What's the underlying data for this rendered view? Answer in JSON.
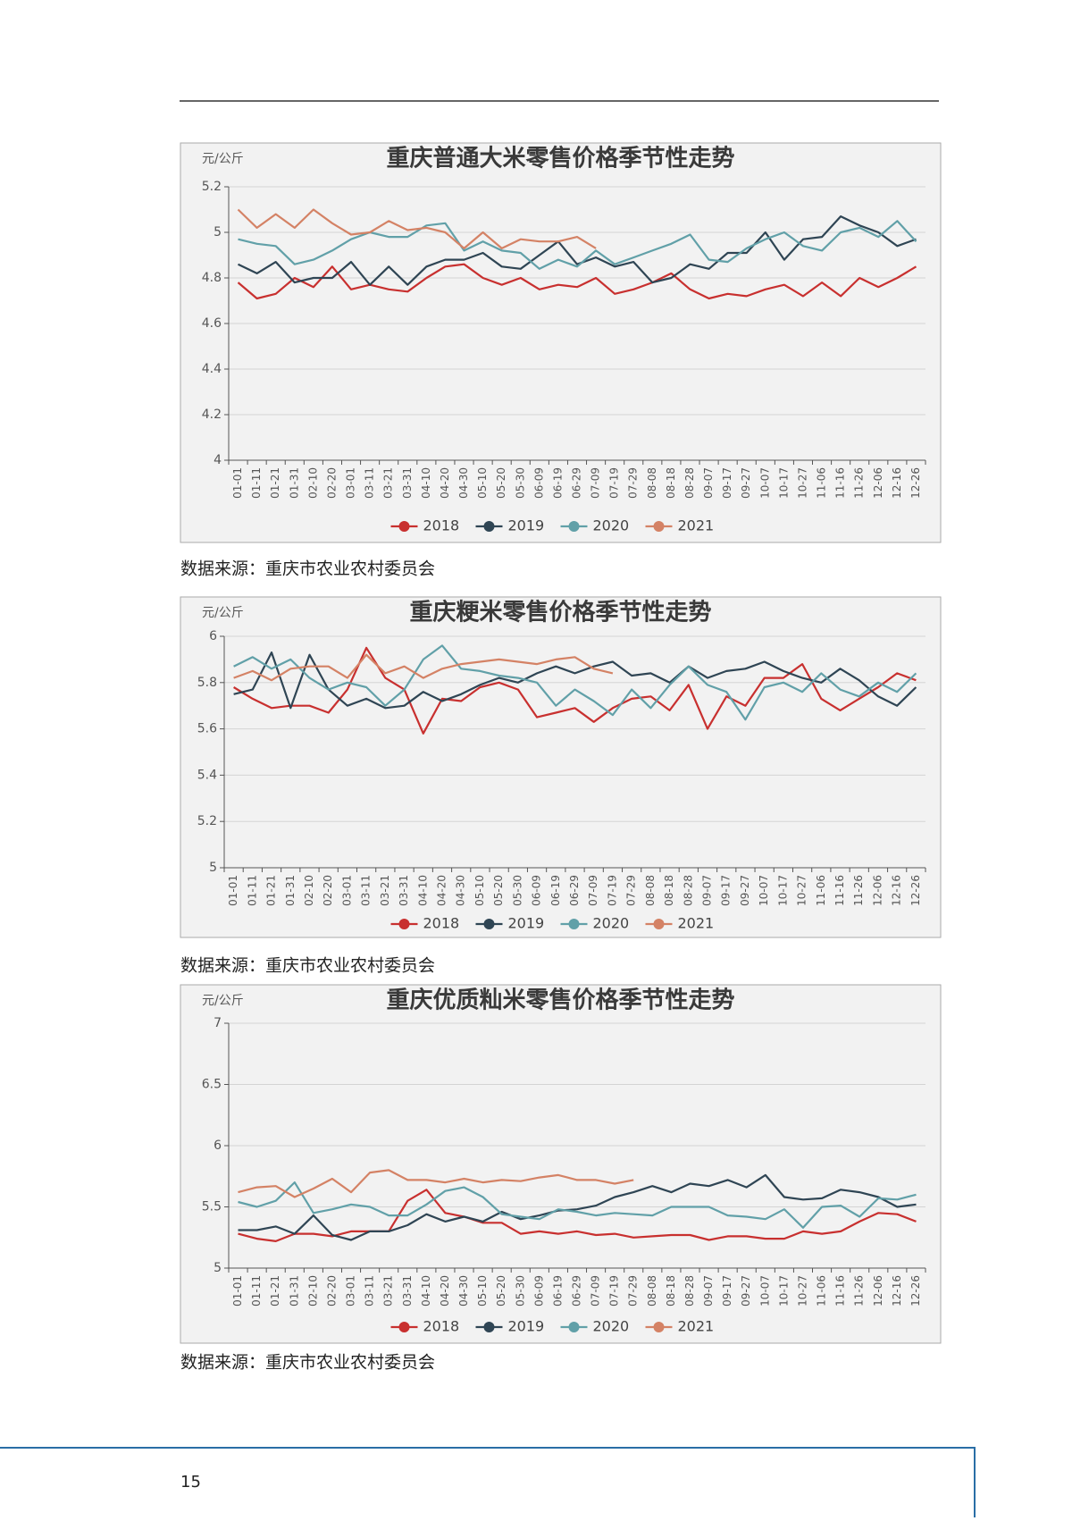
{
  "chart_data": [
    {
      "type": "line",
      "title": "重庆普通大米零售价格季节性走势",
      "y_label": "元/公斤",
      "categories": [
        "01-01",
        "01-11",
        "01-21",
        "01-31",
        "02-10",
        "02-20",
        "03-01",
        "03-11",
        "03-21",
        "03-31",
        "04-10",
        "04-20",
        "04-30",
        "05-10",
        "05-20",
        "05-30",
        "06-09",
        "06-19",
        "06-29",
        "07-09",
        "07-19",
        "07-29",
        "08-08",
        "08-18",
        "08-28",
        "09-07",
        "09-17",
        "09-27",
        "10-07",
        "10-17",
        "10-27",
        "11-06",
        "11-16",
        "11-26",
        "12-06",
        "12-16",
        "12-26"
      ],
      "ylim": [
        4,
        5.2
      ],
      "yticks": [
        4,
        4.2,
        4.4,
        4.6,
        4.8,
        5,
        5.2
      ],
      "grid": true,
      "series": [
        {
          "name": "2018",
          "color": "#c8302f",
          "values": [
            4.78,
            4.71,
            4.73,
            4.8,
            4.76,
            4.85,
            4.75,
            4.77,
            4.75,
            4.74,
            4.8,
            4.85,
            4.86,
            4.8,
            4.77,
            4.8,
            4.75,
            4.77,
            4.76,
            4.8,
            4.73,
            4.75,
            4.78,
            4.82,
            4.75,
            4.71,
            4.73,
            4.72,
            4.75,
            4.77,
            4.72,
            4.78,
            4.72,
            4.8,
            4.76,
            4.8,
            4.85
          ]
        },
        {
          "name": "2019",
          "color": "#2f4554",
          "values": [
            4.86,
            4.82,
            4.87,
            4.78,
            4.8,
            4.8,
            4.87,
            4.77,
            4.85,
            4.77,
            4.85,
            4.88,
            4.88,
            4.91,
            4.85,
            4.84,
            4.9,
            4.96,
            4.86,
            4.89,
            4.85,
            4.87,
            4.78,
            4.8,
            4.86,
            4.84,
            4.91,
            4.91,
            5.0,
            4.88,
            4.97,
            4.98,
            5.07,
            5.03,
            5.0,
            4.94,
            4.97
          ]
        },
        {
          "name": "2020",
          "color": "#61a0a8",
          "values": [
            4.97,
            4.95,
            4.94,
            4.86,
            4.88,
            4.92,
            4.97,
            5.0,
            4.98,
            4.98,
            5.03,
            5.04,
            4.92,
            4.96,
            4.92,
            4.91,
            4.84,
            4.88,
            4.85,
            4.92,
            4.86,
            4.89,
            4.92,
            4.95,
            4.99,
            4.88,
            4.87,
            4.93,
            4.97,
            5.0,
            4.94,
            4.92,
            5.0,
            5.02,
            4.98,
            5.05,
            4.96
          ]
        },
        {
          "name": "2021",
          "color": "#d48265",
          "values": [
            5.1,
            5.02,
            5.08,
            5.02,
            5.1,
            5.04,
            4.99,
            5.0,
            5.05,
            5.01,
            5.02,
            5.0,
            4.93,
            5.0,
            4.93,
            4.97,
            4.96,
            4.96,
            4.98,
            4.93,
            null,
            null,
            null,
            null,
            null,
            null,
            null,
            null,
            null,
            null,
            null,
            null,
            null,
            null,
            null,
            null,
            null
          ]
        }
      ]
    },
    {
      "type": "line",
      "title": "重庆粳米零售价格季节性走势",
      "y_label": "元/公斤",
      "categories": [
        "01-01",
        "01-11",
        "01-21",
        "01-31",
        "02-10",
        "02-20",
        "03-01",
        "03-11",
        "03-21",
        "03-31",
        "04-10",
        "04-20",
        "04-30",
        "05-10",
        "05-20",
        "05-30",
        "06-09",
        "06-19",
        "06-29",
        "07-09",
        "07-19",
        "07-29",
        "08-08",
        "08-18",
        "08-28",
        "09-07",
        "09-17",
        "09-27",
        "10-07",
        "10-17",
        "10-27",
        "11-06",
        "11-16",
        "11-26",
        "12-06",
        "12-16",
        "12-26"
      ],
      "ylim": [
        5,
        6
      ],
      "yticks": [
        5,
        5.2,
        5.4,
        5.6,
        5.8,
        6
      ],
      "grid": true,
      "series": [
        {
          "name": "2018",
          "color": "#c8302f",
          "values": [
            5.78,
            5.73,
            5.69,
            5.7,
            5.7,
            5.67,
            5.77,
            5.95,
            5.82,
            5.77,
            5.58,
            5.73,
            5.72,
            5.78,
            5.8,
            5.77,
            5.65,
            5.67,
            5.69,
            5.63,
            5.69,
            5.73,
            5.74,
            5.68,
            5.79,
            5.6,
            5.74,
            5.7,
            5.82,
            5.82,
            5.88,
            5.73,
            5.68,
            5.73,
            5.78,
            5.84,
            5.81
          ]
        },
        {
          "name": "2019",
          "color": "#2f4554",
          "values": [
            5.75,
            5.77,
            5.93,
            5.69,
            5.92,
            5.77,
            5.7,
            5.73,
            5.69,
            5.7,
            5.76,
            5.72,
            5.75,
            5.79,
            5.82,
            5.8,
            5.84,
            5.87,
            5.84,
            5.87,
            5.89,
            5.83,
            5.84,
            5.8,
            5.87,
            5.82,
            5.85,
            5.86,
            5.89,
            5.85,
            5.82,
            5.8,
            5.86,
            5.81,
            5.74,
            5.7,
            5.78
          ]
        },
        {
          "name": "2020",
          "color": "#61a0a8",
          "values": [
            5.87,
            5.91,
            5.86,
            5.9,
            5.82,
            5.77,
            5.8,
            5.78,
            5.7,
            5.77,
            5.9,
            5.96,
            5.86,
            5.85,
            5.83,
            5.82,
            5.8,
            5.7,
            5.77,
            5.72,
            5.66,
            5.77,
            5.69,
            5.79,
            5.87,
            5.79,
            5.76,
            5.64,
            5.78,
            5.8,
            5.76,
            5.84,
            5.77,
            5.74,
            5.8,
            5.76,
            5.84
          ]
        },
        {
          "name": "2021",
          "color": "#d48265",
          "values": [
            5.82,
            5.85,
            5.81,
            5.86,
            5.87,
            5.87,
            5.82,
            5.92,
            5.84,
            5.87,
            5.82,
            5.86,
            5.88,
            5.89,
            5.9,
            5.89,
            5.88,
            5.9,
            5.91,
            5.86,
            5.84,
            null,
            null,
            null,
            null,
            null,
            null,
            null,
            null,
            null,
            null,
            null,
            null,
            null,
            null,
            null,
            null
          ]
        }
      ]
    },
    {
      "type": "line",
      "title": "重庆优质籼米零售价格季节性走势",
      "y_label": "元/公斤",
      "categories": [
        "01-01",
        "01-11",
        "01-21",
        "01-31",
        "02-10",
        "02-20",
        "03-01",
        "03-11",
        "03-21",
        "03-31",
        "04-10",
        "04-20",
        "04-30",
        "05-10",
        "05-20",
        "05-30",
        "06-09",
        "06-19",
        "06-29",
        "07-09",
        "07-19",
        "07-29",
        "08-08",
        "08-18",
        "08-28",
        "09-07",
        "09-17",
        "09-27",
        "10-07",
        "10-17",
        "10-27",
        "11-06",
        "11-16",
        "11-26",
        "12-06",
        "12-16",
        "12-26"
      ],
      "ylim": [
        5,
        7
      ],
      "yticks": [
        5,
        5.5,
        6,
        6.5,
        7
      ],
      "grid": true,
      "series": [
        {
          "name": "2018",
          "color": "#c8302f",
          "values": [
            5.28,
            5.24,
            5.22,
            5.28,
            5.28,
            5.26,
            5.3,
            5.3,
            5.3,
            5.55,
            5.64,
            5.45,
            5.42,
            5.37,
            5.37,
            5.28,
            5.3,
            5.28,
            5.3,
            5.27,
            5.28,
            5.25,
            5.26,
            5.27,
            5.27,
            5.23,
            5.26,
            5.26,
            5.24,
            5.24,
            5.3,
            5.28,
            5.3,
            5.38,
            5.45,
            5.44,
            5.38
          ]
        },
        {
          "name": "2019",
          "color": "#2f4554",
          "values": [
            5.31,
            5.31,
            5.34,
            5.28,
            5.43,
            5.27,
            5.23,
            5.3,
            5.3,
            5.35,
            5.44,
            5.38,
            5.42,
            5.38,
            5.46,
            5.4,
            5.43,
            5.47,
            5.48,
            5.51,
            5.58,
            5.62,
            5.67,
            5.62,
            5.69,
            5.67,
            5.72,
            5.66,
            5.76,
            5.58,
            5.56,
            5.57,
            5.64,
            5.62,
            5.58,
            5.5,
            5.52
          ]
        },
        {
          "name": "2020",
          "color": "#61a0a8",
          "values": [
            5.54,
            5.5,
            5.55,
            5.7,
            5.45,
            5.48,
            5.52,
            5.5,
            5.43,
            5.43,
            5.52,
            5.63,
            5.66,
            5.58,
            5.44,
            5.42,
            5.4,
            5.48,
            5.46,
            5.43,
            5.45,
            5.44,
            5.43,
            5.5,
            5.5,
            5.5,
            5.43,
            5.42,
            5.4,
            5.48,
            5.33,
            5.5,
            5.51,
            5.42,
            5.57,
            5.56,
            5.6
          ]
        },
        {
          "name": "2021",
          "color": "#d48265",
          "values": [
            5.62,
            5.66,
            5.67,
            5.58,
            5.65,
            5.73,
            5.62,
            5.78,
            5.8,
            5.72,
            5.72,
            5.7,
            5.73,
            5.7,
            5.72,
            5.71,
            5.74,
            5.76,
            5.72,
            5.72,
            5.69,
            5.72,
            null,
            null,
            null,
            null,
            null,
            null,
            null,
            null,
            null,
            null,
            null,
            null,
            null,
            null,
            null
          ]
        }
      ]
    }
  ],
  "sources": [
    "数据来源：重庆市农业农村委员会",
    "数据来源：重庆市农业农村委员会",
    "数据来源：重庆市农业农村委员会"
  ],
  "page_number": "15"
}
